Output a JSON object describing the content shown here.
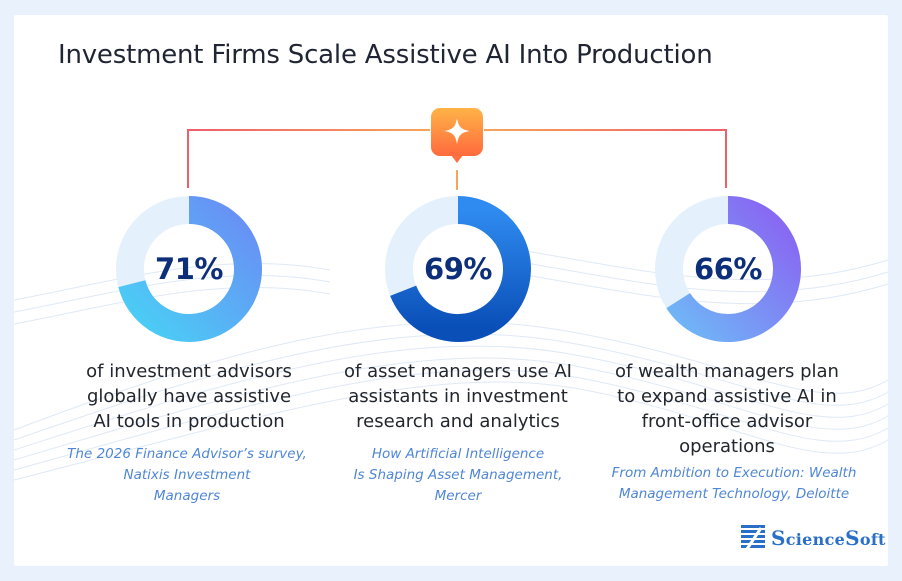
{
  "title": "Investment Firms Scale Assistive AI Into Production",
  "icons": {
    "center": "sparkle-icon",
    "logo": "sciencesoft-logo-icon"
  },
  "colors": {
    "title": "#1f2533",
    "percent": "#0d2f7a",
    "source": "#4f86d6",
    "connector_gradient": [
      "#f7a35c",
      "#ef5f6a"
    ],
    "badge_gradient": [
      "#ffb347",
      "#ff6a3d"
    ],
    "track": "#e4f1fd",
    "ring1": [
      "#49d0f5",
      "#6a8df5"
    ],
    "ring2": [
      "#2f8bf0",
      "#0a4fb8"
    ],
    "ring3": [
      "#6fb7f7",
      "#8a62f2"
    ]
  },
  "chart_data": {
    "type": "donut",
    "items": [
      {
        "value": 71,
        "label": "71%",
        "description": [
          "of investment advisors",
          "globally have assistive",
          "AI tools in production"
        ],
        "source": [
          "The 2026 Finance Advisor’s survey,",
          "Natixis Investment",
          "Managers"
        ]
      },
      {
        "value": 69,
        "label": "69%",
        "description": [
          "of asset managers use AI",
          "assistants in investment",
          "research and analytics"
        ],
        "source": [
          "How Artificial Intelligence",
          "Is Shaping Asset Management,",
          "Mercer"
        ]
      },
      {
        "value": 66,
        "label": "66%",
        "description": [
          "of wealth managers plan",
          "to expand assistive AI in",
          "front-office advisor",
          "operations"
        ],
        "source": [
          "From Ambition to Execution: Wealth",
          "Management Technology, Deloitte"
        ]
      }
    ]
  },
  "logo": {
    "S": "S",
    "cience": "cience",
    "S2": "S",
    "oft": "oft"
  }
}
